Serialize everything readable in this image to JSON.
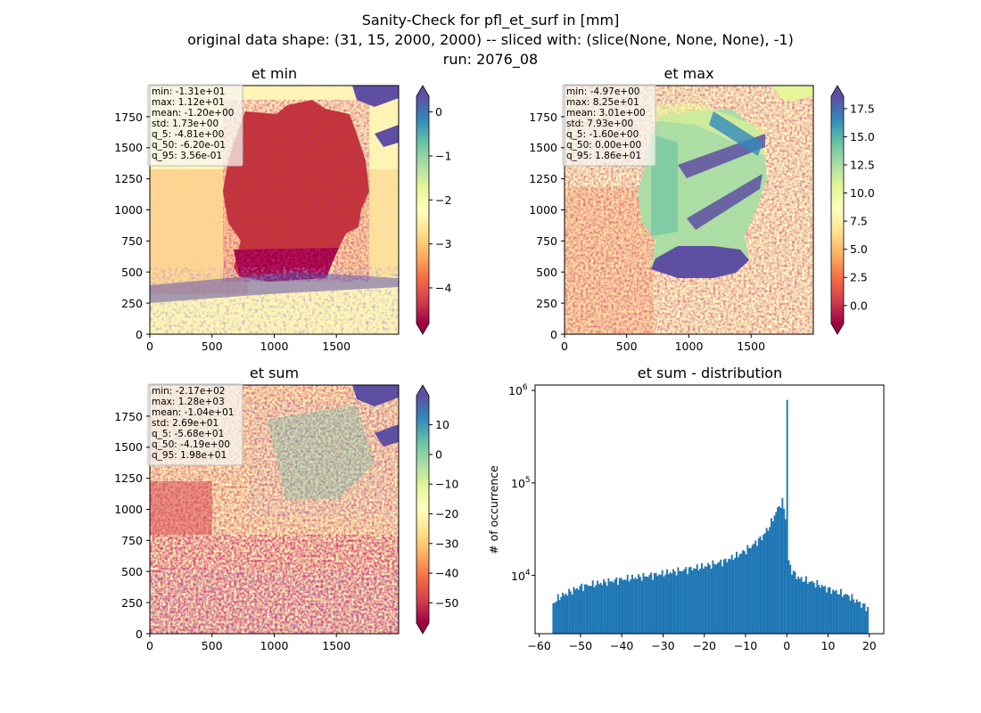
{
  "suptitle": {
    "line1": "Sanity-Check for pfl_et_surf in [mm]",
    "line2": "original data shape: (31, 15, 2000, 2000) -- sliced with: (slice(None, None, None), -1)",
    "line3": "run: 2076_08"
  },
  "panels": [
    {
      "title": "et min",
      "xticks": [
        "0",
        "500",
        "1000",
        "1500"
      ],
      "yticks": [
        "0",
        "250",
        "500",
        "750",
        "1000",
        "1250",
        "1500",
        "1750"
      ],
      "stats": [
        "min: -1.31e+01",
        "max: 1.12e+01",
        "mean: -1.20e+00",
        "std: 1.73e+00",
        "q_5: -4.81e+00",
        "q_50: -6.20e-01",
        "q_95: 3.56e-01"
      ],
      "colorbar": {
        "range": [
          -4.81,
          0.356
        ],
        "ticks": [
          0,
          -1,
          -2,
          -3,
          -4
        ],
        "labels": [
          "0",
          "−1",
          "−2",
          "−3",
          "−4"
        ]
      }
    },
    {
      "title": "et max",
      "xticks": [
        "0",
        "500",
        "1000",
        "1500"
      ],
      "yticks": [
        "0",
        "250",
        "500",
        "750",
        "1000",
        "1250",
        "1500",
        "1750"
      ],
      "stats": [
        "min: -4.97e+00",
        "max: 8.25e+01",
        "mean: 3.01e+00",
        "std: 7.93e+00",
        "q_5: -1.60e+00",
        "q_50: 0.00e+00",
        "q_95: 1.86e+01"
      ],
      "colorbar": {
        "range": [
          -1.6,
          18.6
        ],
        "ticks": [
          17.5,
          15.0,
          12.5,
          10.0,
          7.5,
          5.0,
          2.5,
          0.0
        ],
        "labels": [
          "17.5",
          "15.0",
          "12.5",
          "10.0",
          "7.5",
          "5.0",
          "2.5",
          "0.0"
        ]
      }
    },
    {
      "title": "et sum",
      "xticks": [
        "0",
        "500",
        "1000",
        "1500"
      ],
      "yticks": [
        "0",
        "250",
        "500",
        "750",
        "1000",
        "1250",
        "1500",
        "1750"
      ],
      "stats": [
        "min: -2.17e+02",
        "max: 1.28e+03",
        "mean: -1.04e+01",
        "std: 2.69e+01",
        "q_5: -5.68e+01",
        "q_50: -4.19e+00",
        "q_95: 1.98e+01"
      ],
      "colorbar": {
        "range": [
          -56.8,
          19.8
        ],
        "ticks": [
          10,
          0,
          -10,
          -20,
          -30,
          -40,
          -50
        ],
        "labels": [
          "10",
          "0",
          "−10",
          "−20",
          "−30",
          "−40",
          "−50"
        ]
      }
    }
  ],
  "chart_data": {
    "type": "bar",
    "title": "et sum - distribution",
    "xlabel": "",
    "ylabel": "# of occurrence",
    "yscale": "log",
    "xlim": [
      -61,
      23.5
    ],
    "ylim": [
      2000,
      1200000
    ],
    "xticks": [
      -60,
      -50,
      -40,
      -30,
      -20,
      -10,
      0,
      10,
      20
    ],
    "xtick_labels": [
      "−60",
      "−50",
      "−40",
      "−30",
      "−20",
      "−10",
      "0",
      "10",
      "20"
    ],
    "ytick_labels": [
      "10^4",
      "10^5",
      "10^6"
    ],
    "bin_range": [
      -56.8,
      19.8
    ],
    "bin_count": 200,
    "anchors_x": [
      -56.8,
      -55,
      -50,
      -45,
      -40,
      -35,
      -30,
      -25,
      -20,
      -15,
      -12,
      -10,
      -8,
      -6,
      -5,
      -4,
      -3,
      -2,
      -1,
      -0.3,
      0,
      0.3,
      1,
      2,
      3,
      5,
      8,
      10,
      15,
      19.8
    ],
    "anchors_y": [
      4300,
      5200,
      6700,
      7400,
      8100,
      8700,
      9400,
      10300,
      11300,
      13000,
      15000,
      17000,
      20000,
      24000,
      28000,
      33000,
      42000,
      52000,
      60000,
      40000,
      820000,
      14000,
      10500,
      9200,
      8300,
      7800,
      7000,
      6300,
      5300,
      3800
    ],
    "grid": false,
    "legend": "none",
    "color": "#1f77b4"
  },
  "colors": {
    "deep_red": "#9e0142",
    "yellow": "#ffffbf",
    "blue": "#5e4fa2",
    "hist": "#1f77b4"
  }
}
